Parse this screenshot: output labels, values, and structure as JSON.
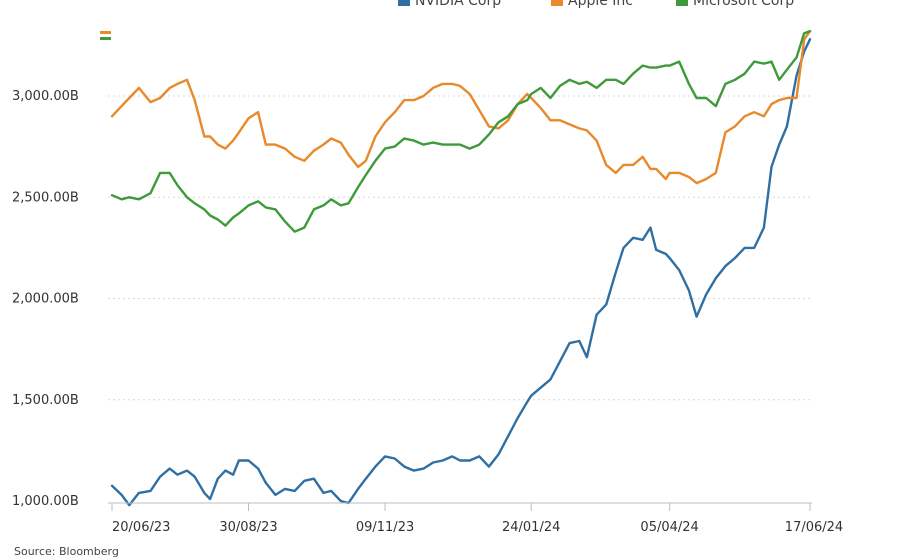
{
  "chart_data": {
    "type": "line",
    "title": "",
    "xlabel": "",
    "ylabel": "",
    "source": "Source: Bloomberg",
    "x_range": [
      "2023-06-20",
      "2024-06-17"
    ],
    "ylim": [
      1000,
      3350
    ],
    "y_ticks": [
      {
        "value": 1000,
        "label": "1,000.00B"
      },
      {
        "value": 1500,
        "label": "1,500.00B"
      },
      {
        "value": 2000,
        "label": "2,000.00B"
      },
      {
        "value": 2500,
        "label": "2,500.00B"
      },
      {
        "value": 3000,
        "label": "3,000.00B"
      }
    ],
    "x_ticks": [
      {
        "value": "2023-06-20",
        "label": "20/06/23"
      },
      {
        "value": "2023-08-30",
        "label": "30/08/23"
      },
      {
        "value": "2023-11-09",
        "label": "09/11/23"
      },
      {
        "value": "2024-01-24",
        "label": "24/01/24"
      },
      {
        "value": "2024-04-05",
        "label": "05/04/24"
      },
      {
        "value": "2024-06-17",
        "label": "17/06/24"
      }
    ],
    "grid": true,
    "legend_position": "top",
    "series": [
      {
        "name": "NVIDIA Corp",
        "color": "#2f6fa3",
        "points": [
          [
            "2023-06-20",
            1075
          ],
          [
            "2023-06-25",
            1030
          ],
          [
            "2023-06-29",
            980
          ],
          [
            "2023-07-04",
            1040
          ],
          [
            "2023-07-10",
            1050
          ],
          [
            "2023-07-15",
            1120
          ],
          [
            "2023-07-20",
            1160
          ],
          [
            "2023-07-24",
            1130
          ],
          [
            "2023-07-29",
            1150
          ],
          [
            "2023-08-02",
            1120
          ],
          [
            "2023-08-07",
            1040
          ],
          [
            "2023-08-10",
            1010
          ],
          [
            "2023-08-14",
            1110
          ],
          [
            "2023-08-18",
            1150
          ],
          [
            "2023-08-22",
            1130
          ],
          [
            "2023-08-25",
            1200
          ],
          [
            "2023-08-30",
            1200
          ],
          [
            "2023-09-04",
            1160
          ],
          [
            "2023-09-08",
            1090
          ],
          [
            "2023-09-13",
            1030
          ],
          [
            "2023-09-18",
            1060
          ],
          [
            "2023-09-23",
            1050
          ],
          [
            "2023-09-28",
            1100
          ],
          [
            "2023-10-03",
            1110
          ],
          [
            "2023-10-08",
            1040
          ],
          [
            "2023-10-12",
            1050
          ],
          [
            "2023-10-17",
            1000
          ],
          [
            "2023-10-21",
            990
          ],
          [
            "2023-10-26",
            1060
          ],
          [
            "2023-10-30",
            1110
          ],
          [
            "2023-11-04",
            1170
          ],
          [
            "2023-11-09",
            1220
          ],
          [
            "2023-11-14",
            1210
          ],
          [
            "2023-11-19",
            1170
          ],
          [
            "2023-11-24",
            1150
          ],
          [
            "2023-11-29",
            1160
          ],
          [
            "2023-12-04",
            1190
          ],
          [
            "2023-12-09",
            1200
          ],
          [
            "2023-12-14",
            1220
          ],
          [
            "2023-12-18",
            1200
          ],
          [
            "2023-12-23",
            1200
          ],
          [
            "2023-12-28",
            1220
          ],
          [
            "2024-01-02",
            1170
          ],
          [
            "2024-01-07",
            1230
          ],
          [
            "2024-01-12",
            1320
          ],
          [
            "2024-01-17",
            1410
          ],
          [
            "2024-01-22",
            1490
          ],
          [
            "2024-01-24",
            1520
          ],
          [
            "2024-01-29",
            1560
          ],
          [
            "2024-02-03",
            1600
          ],
          [
            "2024-02-08",
            1690
          ],
          [
            "2024-02-13",
            1780
          ],
          [
            "2024-02-18",
            1790
          ],
          [
            "2024-02-22",
            1710
          ],
          [
            "2024-02-27",
            1920
          ],
          [
            "2024-03-03",
            1970
          ],
          [
            "2024-03-08",
            2130
          ],
          [
            "2024-03-12",
            2250
          ],
          [
            "2024-03-17",
            2300
          ],
          [
            "2024-03-22",
            2290
          ],
          [
            "2024-03-26",
            2350
          ],
          [
            "2024-03-29",
            2240
          ],
          [
            "2024-04-03",
            2220
          ],
          [
            "2024-04-05",
            2200
          ],
          [
            "2024-04-10",
            2140
          ],
          [
            "2024-04-15",
            2040
          ],
          [
            "2024-04-19",
            1910
          ],
          [
            "2024-04-24",
            2020
          ],
          [
            "2024-04-29",
            2100
          ],
          [
            "2024-05-04",
            2160
          ],
          [
            "2024-05-09",
            2200
          ],
          [
            "2024-05-14",
            2250
          ],
          [
            "2024-05-19",
            2250
          ],
          [
            "2024-05-24",
            2350
          ],
          [
            "2024-05-28",
            2650
          ],
          [
            "2024-06-01",
            2760
          ],
          [
            "2024-06-05",
            2850
          ],
          [
            "2024-06-10",
            3100
          ],
          [
            "2024-06-14",
            3220
          ],
          [
            "2024-06-17",
            3280
          ]
        ]
      },
      {
        "name": "Apple Inc",
        "color": "#e8892b",
        "points": [
          [
            "2023-06-20",
            2900
          ],
          [
            "2023-06-25",
            2950
          ],
          [
            "2023-06-29",
            2990
          ],
          [
            "2023-07-04",
            3040
          ],
          [
            "2023-07-10",
            2970
          ],
          [
            "2023-07-15",
            2990
          ],
          [
            "2023-07-20",
            3040
          ],
          [
            "2023-07-24",
            3060
          ],
          [
            "2023-07-29",
            3080
          ],
          [
            "2023-08-02",
            2980
          ],
          [
            "2023-08-07",
            2800
          ],
          [
            "2023-08-10",
            2800
          ],
          [
            "2023-08-14",
            2760
          ],
          [
            "2023-08-18",
            2740
          ],
          [
            "2023-08-22",
            2780
          ],
          [
            "2023-08-25",
            2820
          ],
          [
            "2023-08-30",
            2890
          ],
          [
            "2023-09-04",
            2920
          ],
          [
            "2023-09-08",
            2760
          ],
          [
            "2023-09-13",
            2760
          ],
          [
            "2023-09-18",
            2740
          ],
          [
            "2023-09-23",
            2700
          ],
          [
            "2023-09-28",
            2680
          ],
          [
            "2023-10-03",
            2730
          ],
          [
            "2023-10-08",
            2760
          ],
          [
            "2023-10-12",
            2790
          ],
          [
            "2023-10-17",
            2770
          ],
          [
            "2023-10-21",
            2710
          ],
          [
            "2023-10-26",
            2650
          ],
          [
            "2023-10-30",
            2680
          ],
          [
            "2023-11-04",
            2800
          ],
          [
            "2023-11-09",
            2870
          ],
          [
            "2023-11-14",
            2920
          ],
          [
            "2023-11-19",
            2980
          ],
          [
            "2023-11-24",
            2980
          ],
          [
            "2023-11-29",
            3000
          ],
          [
            "2023-12-04",
            3040
          ],
          [
            "2023-12-09",
            3060
          ],
          [
            "2023-12-14",
            3060
          ],
          [
            "2023-12-18",
            3050
          ],
          [
            "2023-12-23",
            3010
          ],
          [
            "2023-12-28",
            2930
          ],
          [
            "2024-01-02",
            2850
          ],
          [
            "2024-01-07",
            2840
          ],
          [
            "2024-01-12",
            2880
          ],
          [
            "2024-01-17",
            2960
          ],
          [
            "2024-01-22",
            3010
          ],
          [
            "2024-01-24",
            2990
          ],
          [
            "2024-01-29",
            2940
          ],
          [
            "2024-02-03",
            2880
          ],
          [
            "2024-02-08",
            2880
          ],
          [
            "2024-02-13",
            2860
          ],
          [
            "2024-02-18",
            2840
          ],
          [
            "2024-02-22",
            2830
          ],
          [
            "2024-02-27",
            2780
          ],
          [
            "2024-03-03",
            2660
          ],
          [
            "2024-03-08",
            2620
          ],
          [
            "2024-03-12",
            2660
          ],
          [
            "2024-03-17",
            2660
          ],
          [
            "2024-03-22",
            2700
          ],
          [
            "2024-03-26",
            2640
          ],
          [
            "2024-03-29",
            2640
          ],
          [
            "2024-04-03",
            2590
          ],
          [
            "2024-04-05",
            2620
          ],
          [
            "2024-04-10",
            2620
          ],
          [
            "2024-04-15",
            2600
          ],
          [
            "2024-04-19",
            2570
          ],
          [
            "2024-04-24",
            2590
          ],
          [
            "2024-04-29",
            2620
          ],
          [
            "2024-05-04",
            2820
          ],
          [
            "2024-05-09",
            2850
          ],
          [
            "2024-05-14",
            2900
          ],
          [
            "2024-05-19",
            2920
          ],
          [
            "2024-05-24",
            2900
          ],
          [
            "2024-05-28",
            2960
          ],
          [
            "2024-06-01",
            2980
          ],
          [
            "2024-06-05",
            2990
          ],
          [
            "2024-06-10",
            2990
          ],
          [
            "2024-06-14",
            3280
          ],
          [
            "2024-06-17",
            3320
          ]
        ]
      },
      {
        "name": "Microsoft Corp",
        "color": "#3e9a3a",
        "points": [
          [
            "2023-06-20",
            2510
          ],
          [
            "2023-06-25",
            2490
          ],
          [
            "2023-06-29",
            2500
          ],
          [
            "2023-07-04",
            2490
          ],
          [
            "2023-07-10",
            2520
          ],
          [
            "2023-07-15",
            2620
          ],
          [
            "2023-07-20",
            2620
          ],
          [
            "2023-07-24",
            2560
          ],
          [
            "2023-07-29",
            2500
          ],
          [
            "2023-08-02",
            2470
          ],
          [
            "2023-08-07",
            2440
          ],
          [
            "2023-08-10",
            2410
          ],
          [
            "2023-08-14",
            2390
          ],
          [
            "2023-08-18",
            2360
          ],
          [
            "2023-08-22",
            2400
          ],
          [
            "2023-08-25",
            2420
          ],
          [
            "2023-08-30",
            2460
          ],
          [
            "2023-09-04",
            2480
          ],
          [
            "2023-09-08",
            2450
          ],
          [
            "2023-09-13",
            2440
          ],
          [
            "2023-09-18",
            2380
          ],
          [
            "2023-09-23",
            2330
          ],
          [
            "2023-09-28",
            2350
          ],
          [
            "2023-10-03",
            2440
          ],
          [
            "2023-10-08",
            2460
          ],
          [
            "2023-10-12",
            2490
          ],
          [
            "2023-10-17",
            2460
          ],
          [
            "2023-10-21",
            2470
          ],
          [
            "2023-10-26",
            2550
          ],
          [
            "2023-10-30",
            2610
          ],
          [
            "2023-11-04",
            2680
          ],
          [
            "2023-11-09",
            2740
          ],
          [
            "2023-11-14",
            2750
          ],
          [
            "2023-11-19",
            2790
          ],
          [
            "2023-11-24",
            2780
          ],
          [
            "2023-11-29",
            2760
          ],
          [
            "2023-12-04",
            2770
          ],
          [
            "2023-12-09",
            2760
          ],
          [
            "2023-12-14",
            2760
          ],
          [
            "2023-12-18",
            2760
          ],
          [
            "2023-12-23",
            2740
          ],
          [
            "2023-12-28",
            2760
          ],
          [
            "2024-01-02",
            2810
          ],
          [
            "2024-01-07",
            2870
          ],
          [
            "2024-01-12",
            2900
          ],
          [
            "2024-01-17",
            2960
          ],
          [
            "2024-01-22",
            2980
          ],
          [
            "2024-01-24",
            3010
          ],
          [
            "2024-01-29",
            3040
          ],
          [
            "2024-02-03",
            2990
          ],
          [
            "2024-02-08",
            3050
          ],
          [
            "2024-02-13",
            3080
          ],
          [
            "2024-02-18",
            3060
          ],
          [
            "2024-02-22",
            3070
          ],
          [
            "2024-02-27",
            3040
          ],
          [
            "2024-03-03",
            3080
          ],
          [
            "2024-03-08",
            3080
          ],
          [
            "2024-03-12",
            3060
          ],
          [
            "2024-03-17",
            3110
          ],
          [
            "2024-03-22",
            3150
          ],
          [
            "2024-03-26",
            3140
          ],
          [
            "2024-03-29",
            3140
          ],
          [
            "2024-04-03",
            3150
          ],
          [
            "2024-04-05",
            3150
          ],
          [
            "2024-04-10",
            3170
          ],
          [
            "2024-04-15",
            3060
          ],
          [
            "2024-04-19",
            2990
          ],
          [
            "2024-04-24",
            2990
          ],
          [
            "2024-04-29",
            2950
          ],
          [
            "2024-05-04",
            3060
          ],
          [
            "2024-05-09",
            3080
          ],
          [
            "2024-05-14",
            3110
          ],
          [
            "2024-05-19",
            3170
          ],
          [
            "2024-05-24",
            3160
          ],
          [
            "2024-05-28",
            3170
          ],
          [
            "2024-06-01",
            3080
          ],
          [
            "2024-06-05",
            3130
          ],
          [
            "2024-06-10",
            3190
          ],
          [
            "2024-06-14",
            3310
          ],
          [
            "2024-06-17",
            3320
          ]
        ]
      }
    ]
  }
}
